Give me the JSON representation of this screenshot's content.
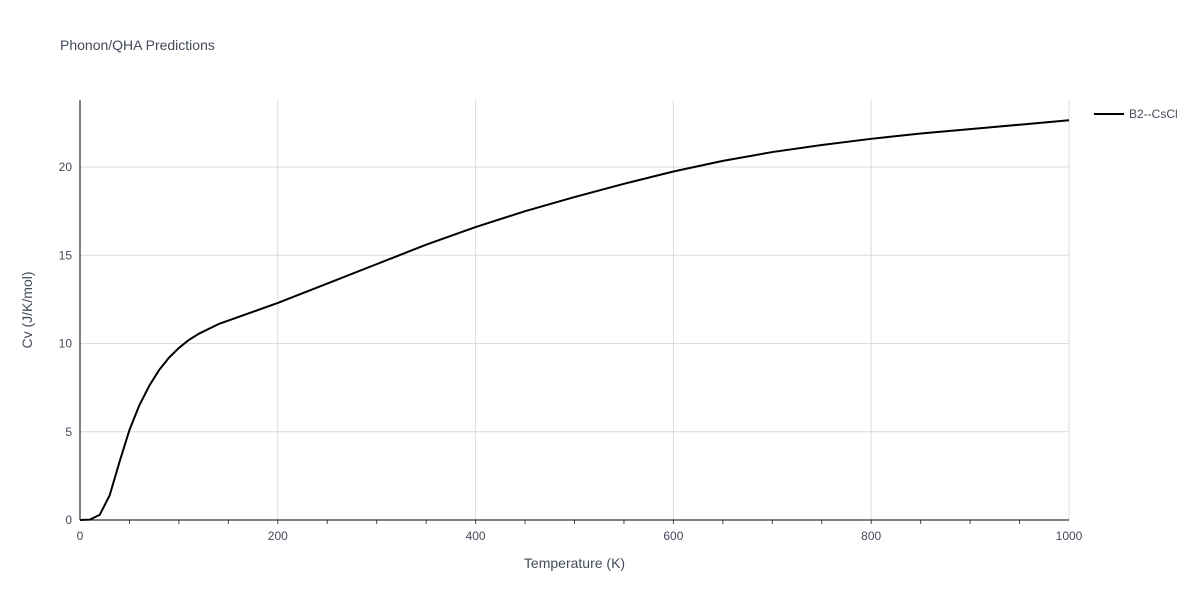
{
  "chart_data": {
    "type": "line",
    "title": "Phonon/QHA Predictions",
    "xlabel": "Temperature (K)",
    "ylabel": "Cv (J/K/mol)",
    "xlim": [
      0,
      1000
    ],
    "ylim": [
      0,
      23.8
    ],
    "xticks": [
      0,
      200,
      400,
      600,
      800,
      1000
    ],
    "xtick_labels": [
      "0",
      "200",
      "400",
      "600",
      "800",
      "1000"
    ],
    "yticks": [
      0,
      5,
      10,
      15,
      20
    ],
    "ytick_labels": [
      "0",
      "5",
      "10",
      "15",
      "20"
    ],
    "grid": true,
    "legend_position": "top-right",
    "series": [
      {
        "name": "B2--CsCl",
        "color": "#000000",
        "x": [
          0,
          10,
          20,
          30,
          40,
          50,
          60,
          70,
          80,
          90,
          100,
          110,
          120,
          140,
          160,
          180,
          200,
          250,
          300,
          350,
          400,
          450,
          500,
          550,
          600,
          650,
          700,
          750,
          800,
          850,
          900,
          950,
          1000
        ],
        "y": [
          0,
          0.02,
          0.3,
          1.4,
          3.3,
          5.1,
          6.5,
          7.6,
          8.5,
          9.2,
          9.75,
          10.2,
          10.55,
          11.1,
          11.5,
          11.9,
          12.3,
          13.4,
          14.5,
          15.6,
          16.6,
          17.5,
          18.3,
          19.05,
          19.75,
          20.35,
          20.85,
          21.25,
          21.6,
          21.9,
          22.15,
          22.4,
          22.65
        ]
      }
    ]
  }
}
